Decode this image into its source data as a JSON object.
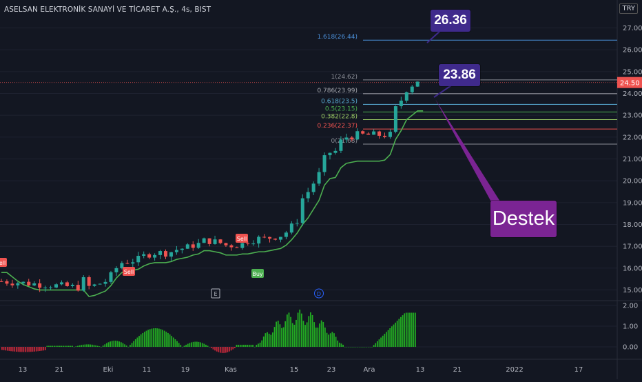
{
  "header": {
    "symbol_title": "ASELSAN ELEKTRONİK SANAYİ VE TİCARET A.Ş., 4s, BIST",
    "currency": "TRY"
  },
  "chart_data": {
    "type": "candlestick",
    "symbol": "ASELSAN ELEKTRONİK SANAYİ VE TİCARET A.Ş.",
    "interval": "4s",
    "exchange": "BIST",
    "currency": "TRY",
    "ylim": [
      14.5,
      28.0
    ],
    "y_ticks": [
      "15.00",
      "16.00",
      "17.00",
      "18.00",
      "19.00",
      "20.00",
      "21.00",
      "22.00",
      "23.00",
      "24.00",
      "25.00",
      "26.00",
      "27.00"
    ],
    "x_ticks": [
      "13",
      "21",
      "Eki",
      "11",
      "19",
      "Kas",
      "15",
      "23",
      "Ara",
      "13",
      "21",
      "2022",
      "17"
    ],
    "last_price": "24.50",
    "fibonacci_levels": [
      {
        "label": "1.618(26.44)",
        "value": 26.44,
        "color": "#4b8fd8"
      },
      {
        "label": "1(24.62)",
        "value": 24.62,
        "color": "#8c8f98"
      },
      {
        "label": "0.786(23.99)",
        "value": 23.99,
        "color": "#a7a9b0"
      },
      {
        "label": "0.618(23.5)",
        "value": 23.5,
        "color": "#5aaed6"
      },
      {
        "label": "0.5(23.15)",
        "value": 23.15,
        "color": "#4caf50"
      },
      {
        "label": "0.382(22.8)",
        "value": 22.8,
        "color": "#9ccc65"
      },
      {
        "label": "0.236(22.37)",
        "value": 22.37,
        "color": "#ef5350"
      },
      {
        "label": "0(21.68)",
        "value": 21.68,
        "color": "#8c8f98"
      }
    ],
    "signals": [
      {
        "label": "Sell",
        "type": "sell"
      },
      {
        "label": "Sell",
        "type": "sell"
      },
      {
        "label": "Sell",
        "type": "sell"
      },
      {
        "label": "Buy",
        "type": "buy"
      }
    ],
    "event_markers": [
      "E",
      "D"
    ],
    "trend_line": [
      [
        0,
        15.8
      ],
      [
        1,
        15.8
      ],
      [
        2,
        15.6
      ],
      [
        3,
        15.4
      ],
      [
        4,
        15.25
      ],
      [
        5,
        15.15
      ],
      [
        6,
        15.05
      ],
      [
        7,
        15.0
      ],
      [
        8,
        15.0
      ],
      [
        9,
        15.0
      ],
      [
        10,
        15.0
      ],
      [
        11,
        15.0
      ],
      [
        12,
        15.0
      ],
      [
        13,
        15.0
      ],
      [
        14,
        15.0
      ],
      [
        15,
        15.0
      ],
      [
        16,
        14.7
      ],
      [
        17,
        14.75
      ],
      [
        18,
        14.85
      ],
      [
        19,
        14.95
      ],
      [
        20,
        15.2
      ],
      [
        21,
        15.55
      ],
      [
        22,
        15.8
      ],
      [
        23,
        15.85
      ],
      [
        24,
        15.9
      ],
      [
        25,
        15.95
      ],
      [
        26,
        16.1
      ],
      [
        27,
        16.2
      ],
      [
        28,
        16.25
      ],
      [
        29,
        16.25
      ],
      [
        30,
        16.25
      ],
      [
        31,
        16.3
      ],
      [
        32,
        16.4
      ],
      [
        33,
        16.45
      ],
      [
        34,
        16.5
      ],
      [
        35,
        16.6
      ],
      [
        36,
        16.65
      ],
      [
        37,
        16.8
      ],
      [
        38,
        16.8
      ],
      [
        39,
        16.75
      ],
      [
        40,
        16.7
      ],
      [
        41,
        16.6
      ],
      [
        42,
        16.6
      ],
      [
        43,
        16.6
      ],
      [
        44,
        16.65
      ],
      [
        45,
        16.65
      ],
      [
        46,
        16.7
      ],
      [
        47,
        16.75
      ],
      [
        48,
        16.75
      ],
      [
        49,
        16.8
      ],
      [
        50,
        16.85
      ],
      [
        51,
        16.9
      ],
      [
        52,
        17.05
      ],
      [
        53,
        17.3
      ],
      [
        54,
        17.6
      ],
      [
        55,
        18.0
      ],
      [
        56,
        18.3
      ],
      [
        57,
        18.7
      ],
      [
        58,
        19.1
      ],
      [
        59,
        19.8
      ],
      [
        60,
        20.1
      ],
      [
        61,
        20.15
      ],
      [
        62,
        20.6
      ],
      [
        63,
        20.8
      ],
      [
        64,
        20.85
      ],
      [
        65,
        20.9
      ],
      [
        66,
        20.9
      ],
      [
        67,
        20.9
      ],
      [
        68,
        20.9
      ],
      [
        69,
        20.9
      ],
      [
        70,
        20.95
      ],
      [
        71,
        21.2
      ],
      [
        72,
        21.9
      ],
      [
        73,
        22.3
      ],
      [
        74,
        22.8
      ],
      [
        75,
        23.0
      ],
      [
        76,
        23.2
      ],
      [
        77,
        23.2
      ]
    ],
    "oscillator": {
      "y_ticks": [
        "2.00",
        "1.00",
        "0.00"
      ],
      "ylim": [
        -0.5,
        2.1
      ]
    }
  },
  "callouts": [
    {
      "text": "26.36",
      "color": "#3f2a8c"
    },
    {
      "text": "23.86",
      "color": "#3f2a8c"
    },
    {
      "text": "Destek",
      "color": "#7b2493"
    }
  ]
}
